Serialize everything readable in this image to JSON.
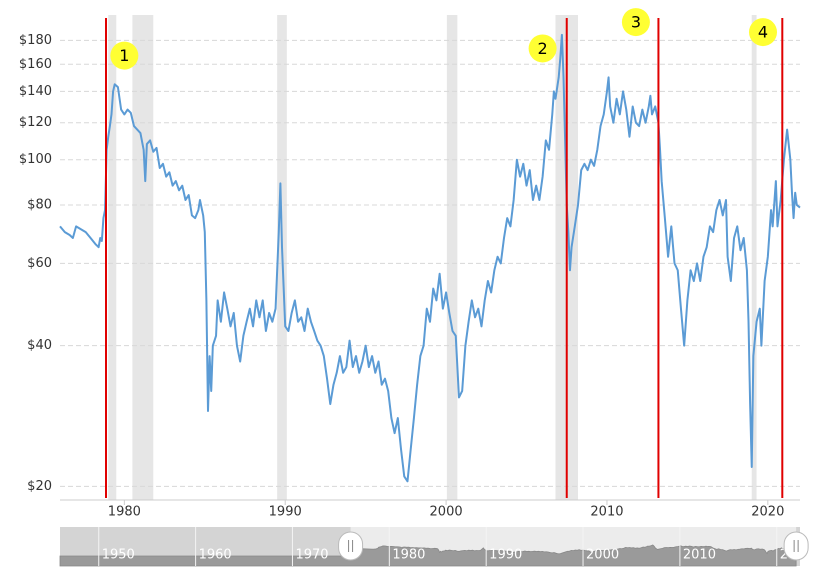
{
  "chart_data": {
    "type": "line",
    "log_scale": true,
    "grid": true,
    "color": "#5b9bd5",
    "recession_color": "#e6e6e6",
    "marker_color": "#e00000",
    "annotation_color": "#ffff33",
    "xlim": [
      1976,
      2022
    ],
    "xticks": [
      1980,
      1990,
      2000,
      2010,
      2020
    ],
    "ylim": [
      18.7,
      204
    ],
    "yticks": [
      {
        "value": 20,
        "label": "$20"
      },
      {
        "value": 40,
        "label": "$40"
      },
      {
        "value": 60,
        "label": "$60"
      },
      {
        "value": 80,
        "label": "$80"
      },
      {
        "value": 100,
        "label": "$100"
      },
      {
        "value": 120,
        "label": "$120"
      },
      {
        "value": 140,
        "label": "$140"
      },
      {
        "value": 160,
        "label": "$160"
      },
      {
        "value": 180,
        "label": "$180"
      }
    ],
    "recessions": [
      [
        1979.0,
        1979.5
      ],
      [
        1980.5,
        1981.8
      ],
      [
        1989.5,
        1990.1
      ],
      [
        2000.05,
        2000.7
      ],
      [
        2006.8,
        2008.2
      ],
      [
        2019.0,
        2019.3
      ]
    ],
    "markers": [
      1978.86,
      2007.5,
      2013.2,
      2020.9
    ],
    "annotations": [
      {
        "label": "1",
        "x": 1980.0,
        "y": 167
      },
      {
        "label": "2",
        "x": 2006.0,
        "y": 173
      },
      {
        "label": "3",
        "x": 2011.8,
        "y": 197
      },
      {
        "label": "4",
        "x": 2019.7,
        "y": 187.5
      }
    ],
    "x": [
      1976.0,
      1976.3,
      1976.6,
      1976.8,
      1977.0,
      1977.3,
      1977.6,
      1977.9,
      1978.2,
      1978.4,
      1978.5,
      1978.6,
      1978.7,
      1978.8,
      1978.9,
      1979.0,
      1979.1,
      1979.2,
      1979.3,
      1979.4,
      1979.6,
      1979.8,
      1980.0,
      1980.2,
      1980.4,
      1980.6,
      1980.8,
      1981.0,
      1981.2,
      1981.3,
      1981.4,
      1981.6,
      1981.8,
      1982.0,
      1982.2,
      1982.4,
      1982.6,
      1982.8,
      1983.0,
      1983.2,
      1983.4,
      1983.6,
      1983.8,
      1984.0,
      1984.2,
      1984.4,
      1984.6,
      1984.7,
      1984.9,
      1985.0,
      1985.1,
      1985.2,
      1985.3,
      1985.4,
      1985.5,
      1985.7,
      1985.8,
      1986.0,
      1986.2,
      1986.4,
      1986.6,
      1986.8,
      1987.0,
      1987.2,
      1987.4,
      1987.6,
      1987.8,
      1988.0,
      1988.2,
      1988.4,
      1988.6,
      1988.8,
      1989.0,
      1989.2,
      1989.4,
      1989.6,
      1989.7,
      1989.8,
      1990.0,
      1990.2,
      1990.4,
      1990.6,
      1990.8,
      1991.0,
      1991.2,
      1991.4,
      1991.6,
      1991.8,
      1992.0,
      1992.2,
      1992.4,
      1992.6,
      1992.8,
      1993.0,
      1993.2,
      1993.4,
      1993.6,
      1993.8,
      1994.0,
      1994.2,
      1994.4,
      1994.6,
      1994.8,
      1995.0,
      1995.2,
      1995.4,
      1995.6,
      1995.8,
      1996.0,
      1996.2,
      1996.4,
      1996.6,
      1996.8,
      1997.0,
      1997.2,
      1997.4,
      1997.6,
      1997.8,
      1998.0,
      1998.2,
      1998.4,
      1998.6,
      1998.8,
      1999.0,
      1999.2,
      1999.4,
      1999.6,
      1999.8,
      2000.0,
      2000.2,
      2000.4,
      2000.6,
      2000.8,
      2001.0,
      2001.2,
      2001.4,
      2001.6,
      2001.8,
      2002.0,
      2002.2,
      2002.4,
      2002.6,
      2002.8,
      2003.0,
      2003.2,
      2003.4,
      2003.6,
      2003.8,
      2004.0,
      2004.2,
      2004.4,
      2004.6,
      2004.8,
      2005.0,
      2005.2,
      2005.4,
      2005.6,
      2005.8,
      2006.0,
      2006.2,
      2006.4,
      2006.6,
      2006.7,
      2006.8,
      2007.0,
      2007.1,
      2007.2,
      2007.3,
      2007.4,
      2007.5,
      2007.6,
      2007.7,
      2007.8,
      2008.0,
      2008.2,
      2008.4,
      2008.6,
      2008.8,
      2009.0,
      2009.2,
      2009.4,
      2009.6,
      2009.8,
      2010.0,
      2010.1,
      2010.2,
      2010.4,
      2010.6,
      2010.8,
      2011.0,
      2011.2,
      2011.4,
      2011.6,
      2011.8,
      2012.0,
      2012.2,
      2012.4,
      2012.6,
      2012.7,
      2012.8,
      2013.0,
      2013.2,
      2013.3,
      2013.4,
      2013.6,
      2013.8,
      2014.0,
      2014.2,
      2014.4,
      2014.6,
      2014.8,
      2015.0,
      2015.2,
      2015.4,
      2015.6,
      2015.8,
      2016.0,
      2016.2,
      2016.4,
      2016.6,
      2016.8,
      2017.0,
      2017.2,
      2017.4,
      2017.5,
      2017.7,
      2017.9,
      2018.1,
      2018.3,
      2018.5,
      2018.7,
      2018.8,
      2018.9,
      2019.0,
      2019.1,
      2019.3,
      2019.5,
      2019.6,
      2019.8,
      2020.0,
      2020.2,
      2020.3,
      2020.5,
      2020.6,
      2020.8,
      2021.0,
      2021.2,
      2021.4,
      2021.5,
      2021.6,
      2021.7,
      2021.8,
      2022.0
    ],
    "values": [
      72,
      70,
      69,
      68,
      72,
      71,
      70,
      68,
      66,
      65,
      68,
      67,
      75,
      78,
      105,
      112,
      118,
      125,
      140,
      145,
      143,
      128,
      125,
      128,
      126,
      118,
      116,
      114,
      105,
      90,
      108,
      110,
      104,
      106,
      96,
      98,
      92,
      94,
      88,
      90,
      86,
      88,
      82,
      84,
      76,
      75,
      78,
      82,
      76,
      70,
      50,
      29,
      38,
      32,
      40,
      42,
      50,
      45,
      52,
      48,
      44,
      47,
      40,
      37,
      42,
      45,
      48,
      44,
      50,
      46,
      50,
      43,
      47,
      45,
      48,
      70,
      89,
      65,
      44,
      43,
      47,
      50,
      45,
      46,
      43,
      48,
      45,
      43,
      41,
      40,
      38,
      34,
      30,
      33,
      35,
      38,
      35,
      36,
      41,
      36,
      38,
      35,
      37,
      40,
      36,
      38,
      35,
      37,
      33,
      34,
      32,
      28,
      26,
      28,
      24,
      21,
      20.5,
      24,
      28,
      33,
      38,
      40,
      48,
      45,
      53,
      50,
      57,
      48,
      52,
      47,
      43,
      42,
      31,
      32,
      40,
      45,
      50,
      46,
      48,
      44,
      50,
      55,
      52,
      58,
      62,
      60,
      68,
      75,
      72,
      82,
      100,
      92,
      98,
      88,
      95,
      82,
      88,
      82,
      92,
      110,
      105,
      125,
      140,
      135,
      150,
      165,
      185,
      150,
      110,
      80,
      70,
      58,
      65,
      72,
      80,
      95,
      98,
      95,
      100,
      97,
      105,
      118,
      125,
      140,
      150,
      130,
      120,
      135,
      125,
      140,
      128,
      112,
      130,
      120,
      118,
      128,
      120,
      130,
      137,
      125,
      130,
      120,
      105,
      90,
      75,
      62,
      72,
      60,
      58,
      48,
      40,
      50,
      58,
      55,
      60,
      55,
      62,
      65,
      72,
      70,
      78,
      82,
      76,
      82,
      62,
      55,
      68,
      72,
      64,
      68,
      58,
      45,
      30,
      22,
      38,
      45,
      48,
      40,
      55,
      62,
      78,
      72,
      90,
      72,
      82,
      100,
      116,
      100,
      85,
      75,
      85,
      80,
      79
    ],
    "navigator": {
      "xlim": [
        1946,
        2022.4
      ],
      "xticks": [
        1950,
        1960,
        1970,
        1980,
        1990,
        2000,
        2010,
        2020
      ]
    }
  }
}
